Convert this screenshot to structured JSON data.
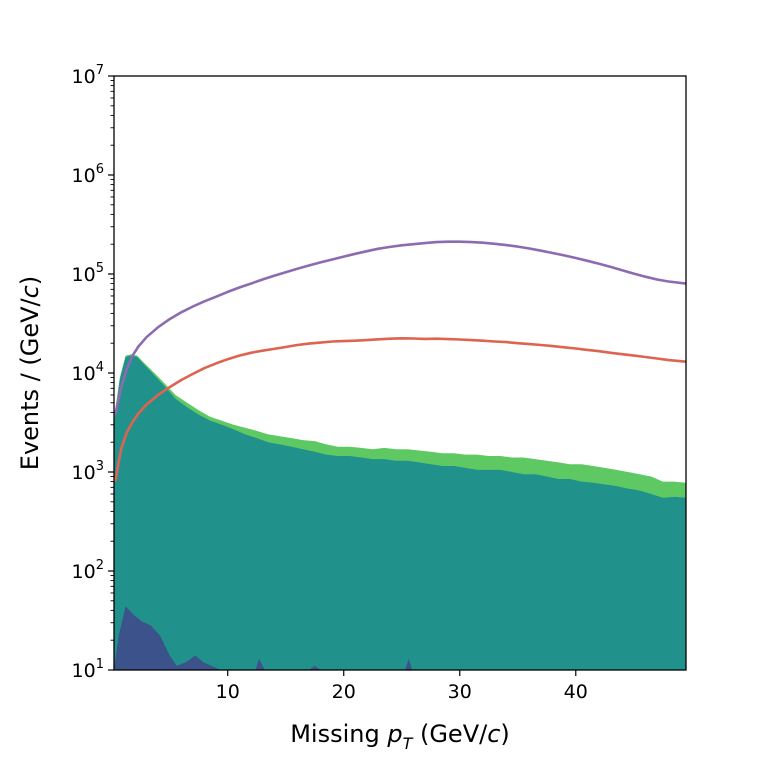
{
  "chart_data": {
    "type": "area",
    "xlabel": {
      "pre": "Missing ",
      "var": "p",
      "sub": "T",
      "post": " (GeV/",
      "c": "c",
      "end": ")"
    },
    "ylabel": {
      "pre": "Events / (GeV/",
      "c": "c",
      "end": ")"
    },
    "xlim": [
      0.2,
      49.5
    ],
    "ylim": [
      10,
      10000000
    ],
    "yscale": "log",
    "x_ticks": [
      10,
      20,
      30,
      40
    ],
    "y_ticks": [
      {
        "value": 10,
        "base": "10",
        "exp": "1"
      },
      {
        "value": 100,
        "base": "10",
        "exp": "2"
      },
      {
        "value": 1000,
        "base": "10",
        "exp": "3"
      },
      {
        "value": 10000,
        "base": "10",
        "exp": "4"
      },
      {
        "value": 100000,
        "base": "10",
        "exp": "5"
      },
      {
        "value": 1000000,
        "base": "10",
        "exp": "6"
      },
      {
        "value": 10000000,
        "base": "10",
        "exp": "7"
      }
    ],
    "grid": false,
    "legend": "none",
    "series": [
      {
        "kind": "area-stack",
        "color": "#5ec962",
        "x": [
          0.2,
          0.7,
          1.2,
          1.7,
          2.2,
          2.7,
          3.5,
          4.5,
          5.5,
          6.5,
          7.5,
          8.5,
          9.5,
          10.5,
          11.5,
          12.5,
          13.5,
          14.5,
          15.5,
          16.5,
          17.5,
          18.5,
          19.5,
          20.5,
          21.5,
          22.5,
          23.5,
          24.5,
          25.5,
          26.5,
          27.5,
          28.5,
          29.5,
          30.5,
          31.5,
          32.5,
          33.5,
          34.5,
          35.5,
          36.5,
          37.5,
          38.5,
          39.5,
          40.5,
          41.5,
          42.5,
          43.5,
          44.5,
          45.5,
          46.5,
          47.5,
          48.5,
          49.5
        ],
        "y": [
          3500,
          9000,
          15000,
          15500,
          15000,
          13000,
          10500,
          8000,
          6000,
          5000,
          4200,
          3600,
          3300,
          3000,
          2800,
          2600,
          2400,
          2300,
          2200,
          2100,
          2050,
          1900,
          1800,
          1800,
          1750,
          1700,
          1750,
          1700,
          1700,
          1650,
          1600,
          1550,
          1550,
          1500,
          1500,
          1450,
          1450,
          1400,
          1400,
          1350,
          1300,
          1250,
          1200,
          1200,
          1150,
          1100,
          1050,
          1000,
          950,
          900,
          800,
          800,
          780
        ]
      },
      {
        "kind": "area",
        "color": "#21918c",
        "x": [
          0.2,
          0.7,
          1.2,
          1.7,
          2.2,
          2.7,
          3.5,
          4.5,
          5.5,
          6.5,
          7.5,
          8.5,
          9.5,
          10.5,
          11.5,
          12.5,
          13.5,
          14.5,
          15.5,
          16.5,
          17.5,
          18.5,
          19.5,
          20.5,
          21.5,
          22.5,
          23.5,
          24.5,
          25.5,
          26.5,
          27.5,
          28.5,
          29.5,
          30.5,
          31.5,
          32.5,
          33.5,
          34.5,
          35.5,
          36.5,
          37.5,
          38.5,
          39.5,
          40.5,
          41.5,
          42.5,
          43.5,
          44.5,
          45.5,
          46.5,
          47.5,
          48.5,
          49.5
        ],
        "y": [
          3000,
          8500,
          14500,
          15000,
          14500,
          12500,
          10000,
          7500,
          5500,
          4500,
          3800,
          3300,
          3000,
          2700,
          2400,
          2200,
          2000,
          1900,
          1800,
          1700,
          1600,
          1500,
          1450,
          1450,
          1400,
          1350,
          1350,
          1300,
          1300,
          1250,
          1200,
          1150,
          1150,
          1100,
          1050,
          1050,
          1050,
          1000,
          950,
          950,
          900,
          850,
          850,
          800,
          780,
          750,
          720,
          680,
          650,
          600,
          550,
          560,
          550
        ]
      },
      {
        "kind": "area",
        "color": "#3b528b",
        "x": [
          0.2,
          0.6,
          1.2,
          1.9,
          2.6,
          3.4,
          4.2,
          5.0,
          5.6,
          6.4,
          7.2,
          7.9,
          8.6,
          9.4,
          10.3,
          11.5,
          12.4,
          12.7,
          13.2,
          14.5,
          17.0,
          17.5,
          18.0,
          19.5,
          20.0,
          25.3,
          25.6,
          25.9,
          30.0,
          40.0,
          49.5
        ],
        "y": [
          10,
          22,
          44,
          36,
          31,
          28,
          22,
          14,
          11,
          12,
          14,
          12,
          11,
          10,
          10,
          10,
          10,
          13,
          10,
          10,
          10,
          11,
          10,
          10,
          10,
          10,
          13,
          10,
          10,
          10,
          10
        ]
      },
      {
        "kind": "line",
        "color": "#dc6450",
        "x": [
          0.3,
          0.8,
          1.3,
          1.8,
          2.3,
          3.0,
          4.0,
          5.0,
          6.0,
          7.0,
          8.0,
          9.0,
          10.0,
          11.0,
          12.0,
          13.0,
          14.0,
          15.0,
          16.0,
          17.0,
          18.0,
          19.0,
          20.0,
          21.0,
          22.0,
          23.0,
          24.0,
          25.0,
          26.0,
          27.0,
          28.0,
          29.0,
          30.0,
          31.0,
          32.0,
          33.0,
          34.0,
          35.0,
          36.0,
          37.0,
          38.0,
          39.0,
          40.0,
          41.0,
          42.0,
          43.0,
          44.0,
          45.0,
          46.0,
          47.0,
          48.0,
          49.5
        ],
        "y": [
          800,
          1700,
          2500,
          3200,
          3900,
          4800,
          6000,
          7200,
          8500,
          9800,
          11200,
          12500,
          13800,
          15000,
          16000,
          16800,
          17500,
          18300,
          19200,
          19800,
          20300,
          20800,
          21000,
          21200,
          21500,
          21900,
          22200,
          22400,
          22300,
          22100,
          22200,
          22000,
          21800,
          21500,
          21200,
          20800,
          20500,
          20000,
          19600,
          19200,
          18700,
          18200,
          17700,
          17100,
          16600,
          16000,
          15500,
          15000,
          14500,
          14000,
          13500,
          13000
        ]
      },
      {
        "kind": "line",
        "color": "#8c6bb1",
        "x": [
          0.3,
          0.8,
          1.3,
          1.8,
          2.3,
          3.0,
          4.0,
          5.0,
          6.0,
          7.0,
          8.0,
          9.0,
          10.0,
          11.0,
          12.0,
          13.0,
          14.0,
          15.0,
          16.0,
          17.0,
          18.0,
          19.0,
          20.0,
          21.0,
          22.0,
          23.0,
          24.0,
          25.0,
          26.0,
          27.0,
          28.0,
          29.0,
          30.0,
          31.0,
          32.0,
          33.0,
          34.0,
          35.0,
          36.0,
          37.0,
          38.0,
          39.0,
          40.0,
          41.0,
          42.0,
          43.0,
          44.0,
          45.0,
          46.0,
          47.0,
          48.0,
          49.5
        ],
        "y": [
          3800,
          7000,
          11000,
          15000,
          18500,
          23000,
          29000,
          35000,
          41000,
          47000,
          53000,
          59000,
          66000,
          73000,
          80000,
          88000,
          96000,
          104000,
          113000,
          122000,
          131000,
          140000,
          150000,
          160000,
          170000,
          180000,
          188000,
          195000,
          200000,
          205000,
          210000,
          212000,
          212000,
          210000,
          207000,
          202000,
          196000,
          189000,
          181000,
          172000,
          163000,
          154000,
          145000,
          136000,
          127000,
          118000,
          109000,
          101000,
          94000,
          88000,
          84000,
          80000
        ]
      }
    ]
  }
}
